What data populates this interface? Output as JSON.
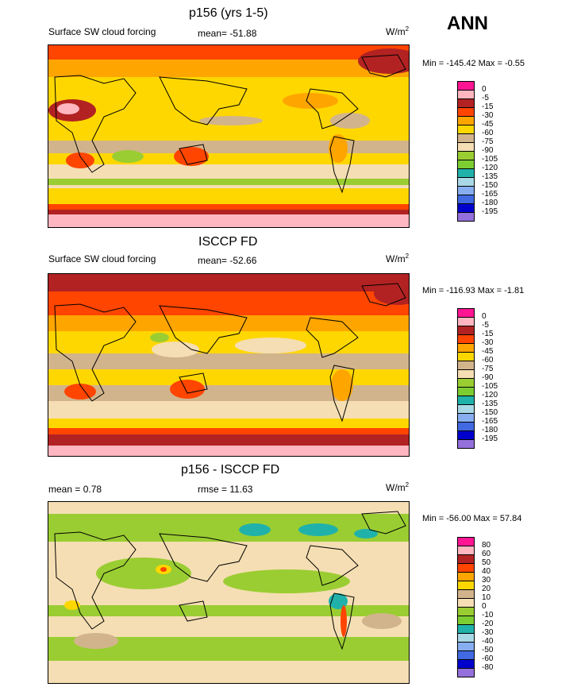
{
  "header": {
    "season": "ANN",
    "units_prefix": "W/m",
    "units_exp": "2"
  },
  "palettes": {
    "field": [
      "#ff1493",
      "#ffb6c1",
      "#b22222",
      "#ff4500",
      "#ffa500",
      "#ffd700",
      "#d2b48c",
      "#f5deb3",
      "#9acd32",
      "#7ccd32",
      "#20b2aa",
      "#a9d9e6",
      "#87aef0",
      "#4169e1",
      "#0000cd",
      "#9370db"
    ],
    "diff": [
      "#ff1493",
      "#ffb6c1",
      "#b22222",
      "#ff4500",
      "#ffa500",
      "#ffd700",
      "#d2b48c",
      "#f5deb3",
      "#9acd32",
      "#7ccd32",
      "#20b2aa",
      "#a9d9e6",
      "#87aef0",
      "#4169e1",
      "#0000cd",
      "#9370db"
    ]
  },
  "chart_data": [
    {
      "type": "heatmap",
      "title": "p156 (yrs 1-5)",
      "variable": "Surface SW cloud forcing",
      "stat_text": "mean= -51.88",
      "minmax_text": "Min = -145.42 Max =  -0.55",
      "legend_levels": [
        "0",
        "-5",
        "-15",
        "-30",
        "-45",
        "-60",
        "-75",
        "-90",
        "-105",
        "-120",
        "-135",
        "-150",
        "-165",
        "-180",
        "-195"
      ]
    },
    {
      "type": "heatmap",
      "title": "ISCCP FD",
      "variable": "Surface SW cloud forcing",
      "stat_text": "mean= -52.66",
      "minmax_text": "Min = -116.93 Max =  -1.81",
      "legend_levels": [
        "0",
        "-5",
        "-15",
        "-30",
        "-45",
        "-60",
        "-75",
        "-90",
        "-105",
        "-120",
        "-135",
        "-150",
        "-165",
        "-180",
        "-195"
      ]
    },
    {
      "type": "heatmap",
      "title": "p156 - ISCCP FD",
      "mean_text": "mean =   0.78",
      "stat_text": "rmse =  11.63",
      "minmax_text": "Min = -56.00 Max =  57.84",
      "legend_levels": [
        "80",
        "60",
        "50",
        "40",
        "30",
        "20",
        "10",
        "0",
        "-10",
        "-20",
        "-30",
        "-40",
        "-50",
        "-60",
        "-80"
      ]
    }
  ]
}
